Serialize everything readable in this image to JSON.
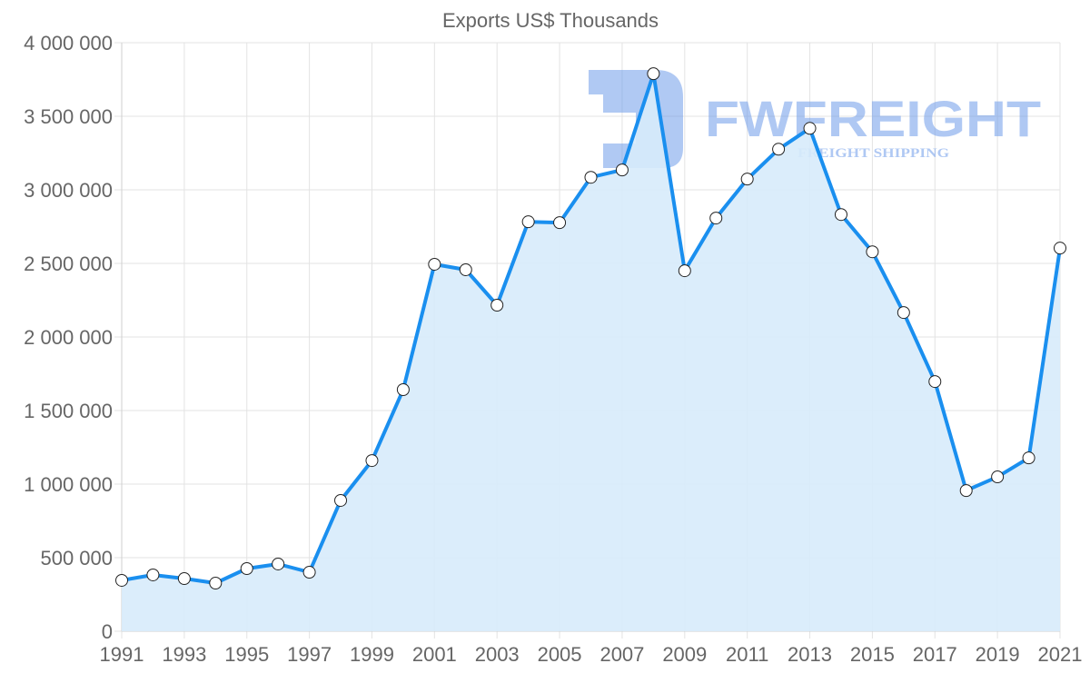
{
  "chart_data": {
    "type": "line",
    "title": "Exports US$ Thousands",
    "xlabel": "",
    "ylabel": "",
    "x": [
      1991,
      1992,
      1993,
      1994,
      1995,
      1996,
      1997,
      1998,
      1999,
      2000,
      2001,
      2002,
      2003,
      2004,
      2005,
      2006,
      2007,
      2008,
      2009,
      2010,
      2011,
      2012,
      2013,
      2014,
      2015,
      2016,
      2017,
      2018,
      2019,
      2020,
      2021
    ],
    "series": [
      {
        "name": "Exports US$ Thousands",
        "values": [
          346000,
          383000,
          358000,
          327000,
          426000,
          457000,
          401000,
          889000,
          1160000,
          1642000,
          2494000,
          2457000,
          2216000,
          2783000,
          2777000,
          3085000,
          3135000,
          3789000,
          2450000,
          2808000,
          3073000,
          3276000,
          3418000,
          2832000,
          2579000,
          2166000,
          1697000,
          956000,
          1049000,
          1178000,
          2604000
        ],
        "color": "#1a8fef",
        "fill": "#d7ebfb"
      }
    ],
    "ylim": [
      0,
      4000000
    ],
    "yticks": [
      "0",
      "500 000",
      "1 000 000",
      "1 500 000",
      "2 000 000",
      "2 500 000",
      "3 000 000",
      "3 500 000",
      "4 000 000"
    ],
    "xticks": [
      "1991",
      "1993",
      "1995",
      "1997",
      "1999",
      "2001",
      "2003",
      "2005",
      "2007",
      "2009",
      "2011",
      "2013",
      "2015",
      "2017",
      "2019",
      "2021"
    ],
    "grid": true,
    "legend": "none"
  },
  "watermark": {
    "brand": "FWFREIGHT",
    "tagline": "FREIGHT SHIPPING"
  }
}
